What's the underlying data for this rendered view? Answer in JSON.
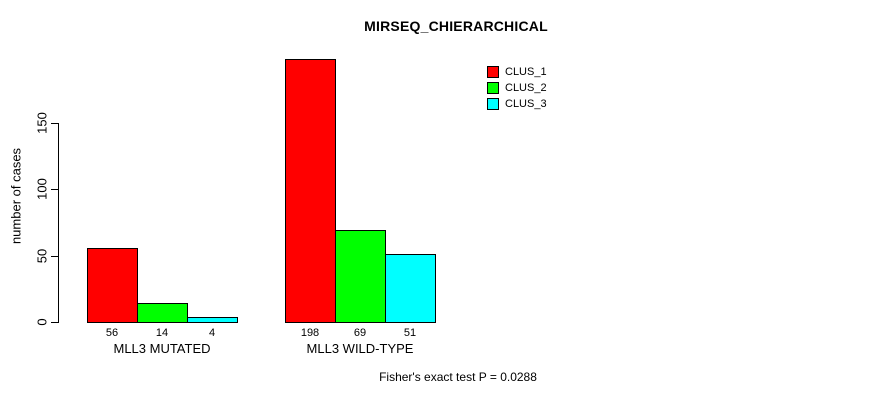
{
  "chart_data": {
    "type": "bar",
    "title": "MIRSEQ_CHIERARCHICAL",
    "ylabel": "number of cases",
    "xlabel": "",
    "categories": [
      "MLL3 MUTATED",
      "MLL3 WILD-TYPE"
    ],
    "series": [
      {
        "name": "CLUS_1",
        "color": "#FF0000",
        "values": [
          56,
          198
        ]
      },
      {
        "name": "CLUS_2",
        "color": "#00FF00",
        "values": [
          14,
          69
        ]
      },
      {
        "name": "CLUS_3",
        "color": "#00FFFF",
        "values": [
          4,
          51
        ]
      }
    ],
    "bar_value_labels_shown": true,
    "yticks": [
      0,
      50,
      100,
      150
    ],
    "ylim": [
      0,
      200
    ],
    "grid": false,
    "legend_position": "top-right",
    "legend_border": false,
    "annotation": "Fisher's exact test P = 0.0288",
    "colors": {
      "background": "#FFFFFF",
      "axis": "#000000",
      "text": "#000000",
      "bar_border": "#000000"
    }
  }
}
